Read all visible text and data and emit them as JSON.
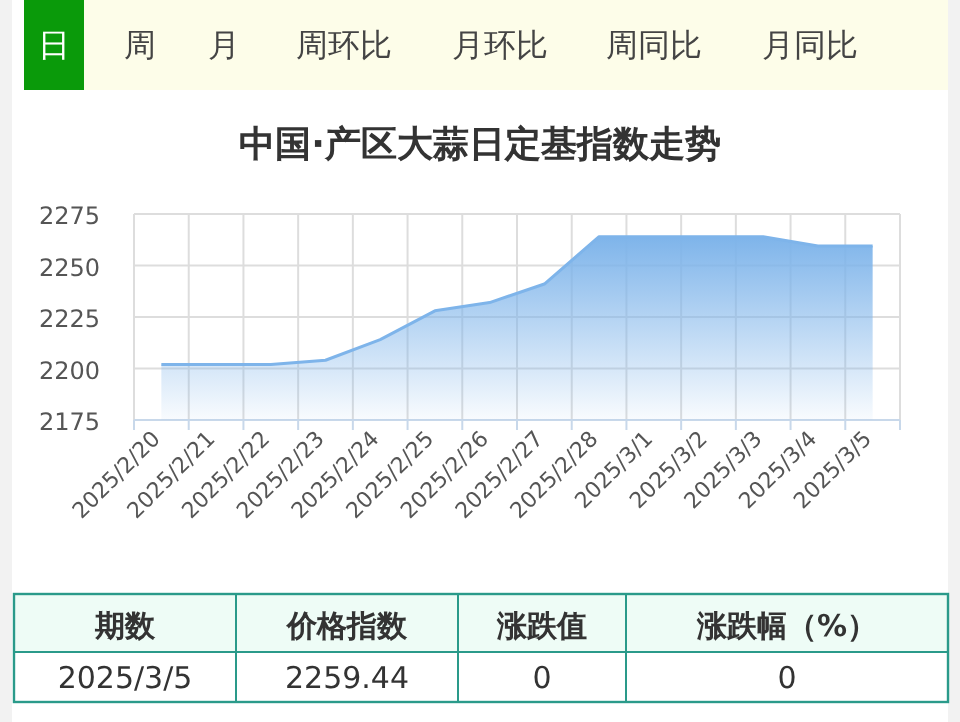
{
  "chart_data": {
    "type": "area",
    "title": "中国·产区大蒜日定基指数走势",
    "categories": [
      "2025/2/20",
      "2025/2/21",
      "2025/2/22",
      "2025/2/23",
      "2025/2/24",
      "2025/2/25",
      "2025/2/26",
      "2025/2/27",
      "2025/2/28",
      "2025/3/1",
      "2025/3/2",
      "2025/3/3",
      "2025/3/4",
      "2025/3/5"
    ],
    "values": [
      2202,
      2202,
      2202,
      2204,
      2214,
      2228,
      2232,
      2241,
      2264,
      2264,
      2264,
      2264,
      2259.44,
      2259.44
    ],
    "color": "#7eb4ea",
    "ylim": [
      2175,
      2275
    ],
    "yticks": [
      2175,
      2200,
      2225,
      2250,
      2275
    ],
    "grid": true,
    "annotations": [
      "日",
      "周",
      "月",
      "周环比",
      "月环比",
      "周同比",
      "月同比",
      "期数",
      "价格指数",
      "涨跌值",
      "涨跌幅（%）",
      "2025/3/5",
      "2259.44",
      "0",
      "0"
    ]
  }
}
